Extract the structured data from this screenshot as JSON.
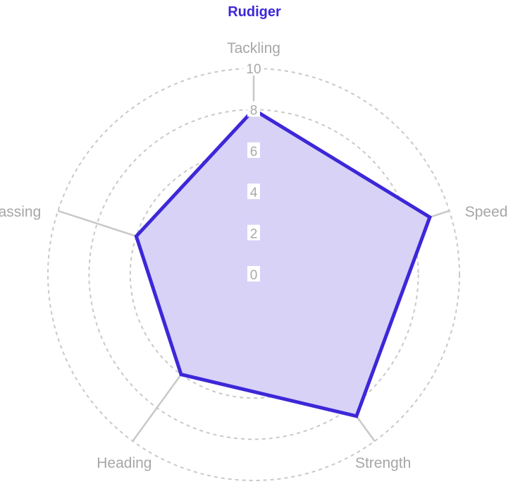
{
  "chart_data": {
    "type": "radar",
    "title": "Rudiger",
    "axes": [
      "Tackling",
      "Speed",
      "Strength",
      "Heading",
      "Passing"
    ],
    "series": [
      {
        "name": "Rudiger",
        "values": [
          8,
          9,
          8.5,
          6,
          6
        ]
      }
    ],
    "rlim": [
      0,
      10
    ],
    "ticks": [
      "0",
      "2",
      "4",
      "6",
      "8",
      "10"
    ],
    "grid": true,
    "colors": {
      "title": "#3d27d8",
      "series_line": "#3d27d8",
      "series_fill": "#d7d2f6"
    }
  }
}
